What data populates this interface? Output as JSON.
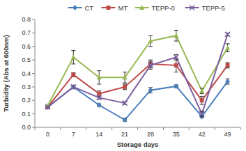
{
  "chart_data": {
    "type": "line",
    "x_label": "Storage days",
    "y_label": "Turbidity (Abs at 600nm)",
    "categories": [
      "0",
      "7",
      "14",
      "21",
      "28",
      "35",
      "42",
      "49"
    ],
    "ylim": [
      0,
      0.8
    ],
    "yticks": [
      {
        "value": 0,
        "label": "0.0"
      },
      0.1,
      0.2,
      0.3,
      0.4,
      0.5,
      0.6,
      0.7,
      0.8
    ],
    "grid": false,
    "legend": "top",
    "series": [
      {
        "name": "CT",
        "color": "#4a7ebb",
        "marker": "diamond",
        "line_style": "solid",
        "values": [
          0.15,
          0.3,
          0.165,
          0.055,
          0.275,
          0.305,
          0.08,
          0.34
        ],
        "errors": [
          0.005,
          0.01,
          0.01,
          0.01,
          0.02,
          0.01,
          0.01,
          0.02
        ]
      },
      {
        "name": "MT",
        "color": "#be4b48",
        "marker": "square",
        "line_style": "solid",
        "values": [
          0.15,
          0.39,
          0.25,
          0.3,
          0.47,
          0.46,
          0.2,
          0.46
        ],
        "errors": [
          0.005,
          0.015,
          0.02,
          0.02,
          0.03,
          0.05,
          0.03,
          0.02
        ]
      },
      {
        "name": "TEPP-0",
        "color": "#98b954",
        "marker": "triangle",
        "line_style": "solid",
        "values": [
          0.16,
          0.52,
          0.37,
          0.37,
          0.64,
          0.68,
          0.27,
          0.59
        ],
        "errors": [
          0.005,
          0.05,
          0.05,
          0.04,
          0.04,
          0.04,
          0.02,
          0.03
        ]
      },
      {
        "name": "TEPP-5",
        "color": "#7d60a0",
        "marker": "x",
        "line_style": "solid",
        "values": [
          0.15,
          0.3,
          0.22,
          0.18,
          0.46,
          0.52,
          0.1,
          0.69
        ],
        "errors": [
          0.005,
          0.01,
          0.01,
          0.01,
          0.03,
          0.02,
          0.02,
          0.01
        ]
      }
    ]
  }
}
